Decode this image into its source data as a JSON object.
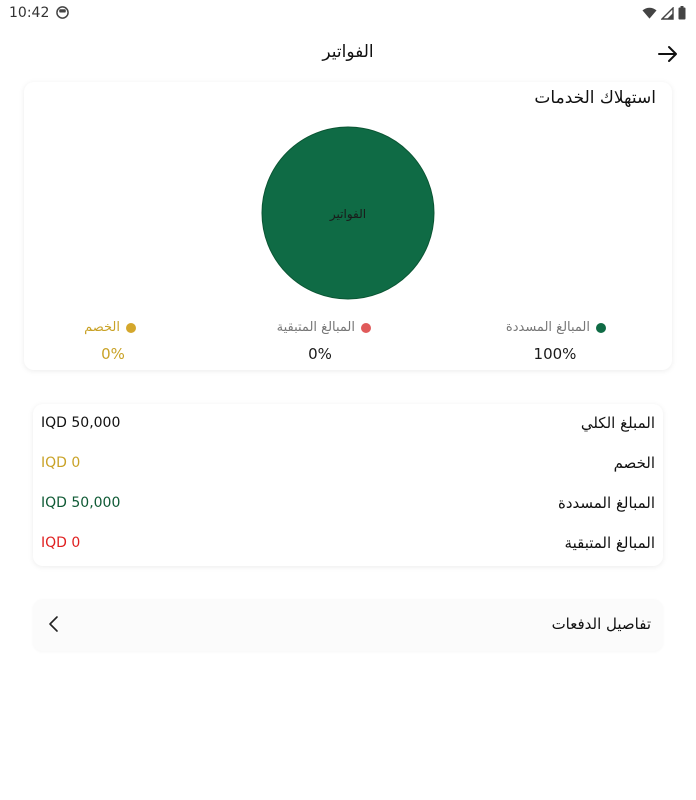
{
  "status_bar": {
    "time": "10:42"
  },
  "header": {
    "title": "الفواتير"
  },
  "usage": {
    "title": "استهلاك الخدمات",
    "pie_label": "الفواتير",
    "legend": [
      {
        "label": "المبالغ المسددة",
        "value": "100%",
        "color": "#0f6b45"
      },
      {
        "label": "المبالغ المتبقية",
        "value": "0%",
        "color": "#e05a5a"
      },
      {
        "label": "الخصم",
        "value": "0%",
        "color": "#d4a72c"
      }
    ]
  },
  "chart_data": {
    "type": "pie",
    "categories": [
      "المبالغ المسددة",
      "المبالغ المتبقية",
      "الخصم"
    ],
    "values": [
      100,
      0,
      0
    ],
    "colors": [
      "#0f6b45",
      "#e05a5a",
      "#d4a72c"
    ],
    "title": "استهلاك الخدمات",
    "center_label": "الفواتير"
  },
  "summary": {
    "rows": [
      {
        "label": "المبلغ الكلي",
        "value": "IQD 50,000",
        "color": "#111111"
      },
      {
        "label": "الخصم",
        "value": "IQD 0",
        "color": "#c9a227"
      },
      {
        "label": "المبالغ المسددة",
        "value": "IQD 50,000",
        "color": "#0f5a35"
      },
      {
        "label": "المبالغ المتبقية",
        "value": "IQD 0",
        "color": "#e02020"
      }
    ]
  },
  "payments": {
    "label": "تفاصيل الدفعات"
  }
}
